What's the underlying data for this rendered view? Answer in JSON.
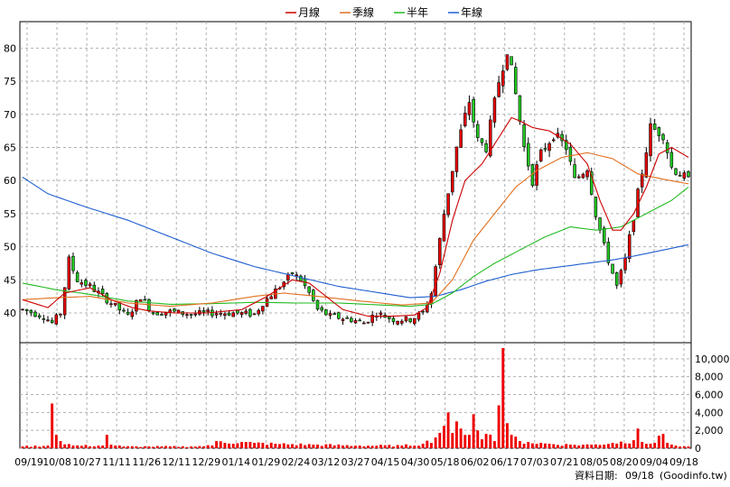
{
  "chart_data": {
    "type": "candlestick",
    "legend": {
      "placement": "top-center",
      "items": [
        {
          "name": "月線",
          "color": "#cc0000"
        },
        {
          "name": "季線",
          "color": "#e07020"
        },
        {
          "name": "半年",
          "color": "#22bb22"
        },
        {
          "name": "年線",
          "color": "#1f5fd0"
        }
      ]
    },
    "price_axis": {
      "ylim": [
        35.5,
        84
      ],
      "ticks": [
        40,
        45,
        50,
        55,
        60,
        65,
        70,
        75,
        80
      ],
      "side": "left"
    },
    "volume_axis": {
      "ylim": [
        0,
        11800
      ],
      "ticks": [
        0,
        2000,
        4000,
        6000,
        8000,
        10000
      ],
      "tick_labels": [
        "0",
        "2,000",
        "4,000",
        "6,000",
        "8,000",
        "10,000"
      ],
      "side": "right"
    },
    "x_tick_labels": [
      "09/19",
      "10/08",
      "10/27",
      "11/11",
      "11/26",
      "12/11",
      "12/29",
      "01/14",
      "01/29",
      "02/24",
      "03/12",
      "03/27",
      "04/15",
      "04/30",
      "05/18",
      "06/02",
      "06/17",
      "07/03",
      "07/21",
      "08/05",
      "08/20",
      "09/04",
      "09/18"
    ],
    "price_anchors": [
      [
        0,
        40.5
      ],
      [
        5,
        39.5
      ],
      [
        7,
        38.5
      ],
      [
        9,
        40
      ],
      [
        11,
        48
      ],
      [
        13,
        45
      ],
      [
        16,
        44
      ],
      [
        19,
        42.5
      ],
      [
        22,
        41
      ],
      [
        25,
        39.5
      ],
      [
        28,
        42.5
      ],
      [
        31,
        40
      ],
      [
        35,
        40.2
      ],
      [
        40,
        39.8
      ],
      [
        45,
        40
      ],
      [
        50,
        40
      ],
      [
        55,
        39.8
      ],
      [
        57,
        41.5
      ],
      [
        61,
        44
      ],
      [
        64,
        46
      ],
      [
        66,
        45
      ],
      [
        68,
        43
      ],
      [
        70,
        40.5
      ],
      [
        73,
        39.5
      ],
      [
        78,
        39
      ],
      [
        81,
        38.5
      ],
      [
        84,
        40
      ],
      [
        88,
        39
      ],
      [
        92,
        39
      ],
      [
        95,
        40
      ],
      [
        97,
        43
      ],
      [
        100,
        55
      ],
      [
        103,
        65
      ],
      [
        106,
        72
      ],
      [
        108,
        66
      ],
      [
        110,
        65
      ],
      [
        113,
        75
      ],
      [
        115,
        80
      ],
      [
        117,
        73
      ],
      [
        119,
        65
      ],
      [
        121,
        60
      ],
      [
        123,
        64
      ],
      [
        126,
        67
      ],
      [
        129,
        65
      ],
      [
        131,
        60
      ],
      [
        134,
        62
      ],
      [
        136,
        55
      ],
      [
        138,
        50
      ],
      [
        141,
        44
      ],
      [
        143,
        48
      ],
      [
        146,
        58
      ],
      [
        149,
        68
      ],
      [
        152,
        67
      ],
      [
        154,
        62
      ],
      [
        156,
        61
      ],
      [
        158,
        60
      ]
    ],
    "ma_month": [
      [
        0,
        42
      ],
      [
        6,
        40.8
      ],
      [
        10,
        43
      ],
      [
        16,
        43.8
      ],
      [
        21,
        42
      ],
      [
        26,
        40.8
      ],
      [
        30,
        40.3
      ],
      [
        36,
        40
      ],
      [
        44,
        40
      ],
      [
        52,
        40.5
      ],
      [
        58,
        42.5
      ],
      [
        64,
        45
      ],
      [
        68,
        44.5
      ],
      [
        72,
        42.5
      ],
      [
        76,
        40.5
      ],
      [
        82,
        39.5
      ],
      [
        88,
        39.5
      ],
      [
        93,
        39.7
      ],
      [
        96,
        40.8
      ],
      [
        99,
        46
      ],
      [
        102,
        54
      ],
      [
        105,
        60
      ],
      [
        109,
        62.5
      ],
      [
        113,
        66.5
      ],
      [
        116,
        69.5
      ],
      [
        118,
        69
      ],
      [
        121,
        68
      ],
      [
        125,
        67.5
      ],
      [
        130,
        65.5
      ],
      [
        134,
        62.5
      ],
      [
        137,
        57
      ],
      [
        140,
        52.5
      ],
      [
        142,
        52.5
      ],
      [
        145,
        55
      ],
      [
        148,
        59
      ],
      [
        151,
        64
      ],
      [
        154,
        65
      ],
      [
        158,
        63.5
      ]
    ],
    "ma_quarter": [
      [
        0,
        42
      ],
      [
        8,
        42.3
      ],
      [
        16,
        42.5
      ],
      [
        25,
        41.5
      ],
      [
        35,
        41
      ],
      [
        45,
        41.5
      ],
      [
        55,
        42.5
      ],
      [
        62,
        43
      ],
      [
        70,
        42.5
      ],
      [
        80,
        41.8
      ],
      [
        90,
        41.2
      ],
      [
        97,
        41.5
      ],
      [
        102,
        45
      ],
      [
        107,
        51
      ],
      [
        112,
        55
      ],
      [
        117,
        59
      ],
      [
        122,
        61.5
      ],
      [
        128,
        63.5
      ],
      [
        134,
        64.2
      ],
      [
        140,
        63.3
      ],
      [
        146,
        61
      ],
      [
        152,
        60.2
      ],
      [
        158,
        59.5
      ]
    ],
    "ma_half": [
      [
        0,
        44.5
      ],
      [
        8,
        43.5
      ],
      [
        16,
        42.8
      ],
      [
        25,
        41.8
      ],
      [
        35,
        41.3
      ],
      [
        45,
        41.4
      ],
      [
        55,
        41.6
      ],
      [
        65,
        41.5
      ],
      [
        75,
        41.5
      ],
      [
        85,
        41.2
      ],
      [
        92,
        41
      ],
      [
        97,
        41.3
      ],
      [
        102,
        43
      ],
      [
        107,
        45.5
      ],
      [
        112,
        47.5
      ],
      [
        118,
        49.5
      ],
      [
        124,
        51.5
      ],
      [
        130,
        53
      ],
      [
        136,
        52.5
      ],
      [
        142,
        53
      ],
      [
        148,
        55
      ],
      [
        154,
        57
      ],
      [
        158,
        59
      ]
    ],
    "ma_year": [
      [
        0,
        60.5
      ],
      [
        6,
        58
      ],
      [
        15,
        56
      ],
      [
        25,
        54
      ],
      [
        35,
        51.5
      ],
      [
        45,
        49
      ],
      [
        55,
        47
      ],
      [
        65,
        45.5
      ],
      [
        75,
        44
      ],
      [
        85,
        43
      ],
      [
        92,
        42.3
      ],
      [
        98,
        42.5
      ],
      [
        104,
        43.5
      ],
      [
        110,
        44.8
      ],
      [
        116,
        45.8
      ],
      [
        122,
        46.5
      ],
      [
        128,
        47
      ],
      [
        134,
        47.5
      ],
      [
        140,
        48
      ],
      [
        146,
        48.7
      ],
      [
        152,
        49.5
      ],
      [
        158,
        50.3
      ]
    ],
    "volume_anchors": [
      [
        0,
        200
      ],
      [
        6,
        300
      ],
      [
        7,
        5000
      ],
      [
        8,
        1500
      ],
      [
        9,
        800
      ],
      [
        12,
        300
      ],
      [
        19,
        300
      ],
      [
        20,
        1500
      ],
      [
        21,
        400
      ],
      [
        24,
        200
      ],
      [
        30,
        200
      ],
      [
        40,
        200
      ],
      [
        45,
        300
      ],
      [
        46,
        800
      ],
      [
        55,
        600
      ],
      [
        60,
        500
      ],
      [
        70,
        400
      ],
      [
        80,
        300
      ],
      [
        90,
        300
      ],
      [
        95,
        500
      ],
      [
        98,
        1200
      ],
      [
        100,
        2500
      ],
      [
        101,
        4000
      ],
      [
        102,
        1700
      ],
      [
        103,
        3000
      ],
      [
        104,
        2200
      ],
      [
        106,
        1500
      ],
      [
        107,
        3800
      ],
      [
        108,
        2000
      ],
      [
        109,
        1000
      ],
      [
        110,
        1600
      ],
      [
        112,
        800
      ],
      [
        113,
        4800
      ],
      [
        114,
        11200
      ],
      [
        115,
        2800
      ],
      [
        116,
        1500
      ],
      [
        118,
        800
      ],
      [
        120,
        700
      ],
      [
        125,
        500
      ],
      [
        130,
        400
      ],
      [
        135,
        400
      ],
      [
        140,
        600
      ],
      [
        145,
        900
      ],
      [
        146,
        2200
      ],
      [
        147,
        700
      ],
      [
        150,
        600
      ],
      [
        152,
        1600
      ],
      [
        153,
        600
      ],
      [
        155,
        300
      ],
      [
        158,
        200
      ]
    ],
    "candle_count": 159
  },
  "footer": {
    "date_label": "資料日期:",
    "date_value": "09/18",
    "source": "(Goodinfo.tw)"
  }
}
